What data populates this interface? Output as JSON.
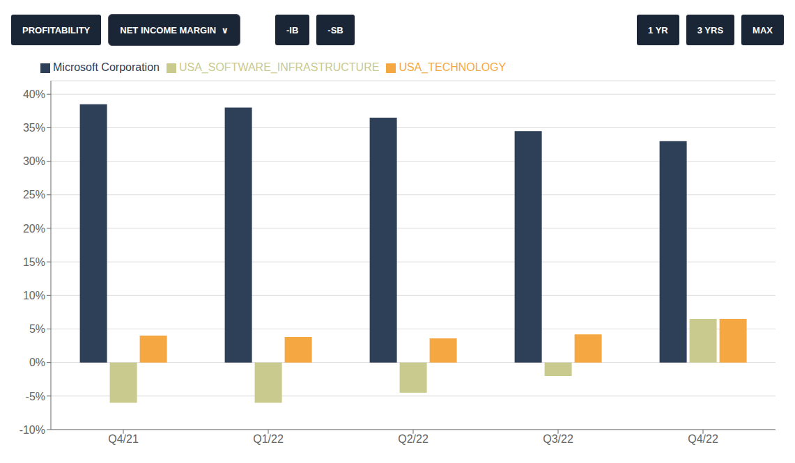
{
  "chart_data": {
    "type": "bar",
    "title": "PROFITABILITY",
    "subtitle": "NET INCOME MARGIN  ∨",
    "annotations": [
      "-IB",
      "-SB",
      "1 YR",
      "3 YRS",
      "MAX"
    ],
    "categories": [
      "Q4/21",
      "Q1/22",
      "Q2/22",
      "Q3/22",
      "Q4/22"
    ],
    "series": [
      {
        "name": "Microsoft Corporation",
        "color": "#2e4057",
        "values": [
          38.5,
          38.0,
          36.5,
          34.5,
          33.0
        ]
      },
      {
        "name": "USA_SOFTWARE_INFRASTRUCTURE",
        "color": "#c9ca8e",
        "values": [
          -6.0,
          -6.0,
          -4.5,
          -2.0,
          6.5
        ]
      },
      {
        "name": "USA_TECHNOLOGY",
        "color": "#f5a742",
        "values": [
          4.0,
          3.8,
          3.6,
          4.2,
          6.5
        ]
      }
    ],
    "ylim": [
      -10,
      42
    ],
    "yticks": [
      {
        "value": -10,
        "label": "-10%"
      },
      {
        "value": -5,
        "label": "-5%"
      },
      {
        "value": 0,
        "label": "0%"
      },
      {
        "value": 5,
        "label": "5%"
      },
      {
        "value": 10,
        "label": "10%"
      },
      {
        "value": 15,
        "label": "15%"
      },
      {
        "value": 20,
        "label": "20%"
      },
      {
        "value": 25,
        "label": "25%"
      },
      {
        "value": 30,
        "label": "30%"
      },
      {
        "value": 35,
        "label": "35%"
      },
      {
        "value": 40,
        "label": "40%"
      }
    ],
    "grid": true,
    "legend": "upper left"
  }
}
